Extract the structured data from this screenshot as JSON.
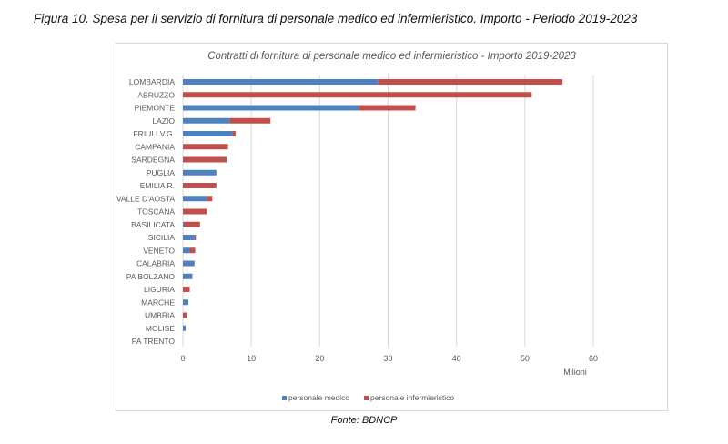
{
  "figure_title": "Figura 10. Spesa per il servizio di fornitura di personale medico ed infermieristico. Importo - Periodo 2019-2023",
  "source": "Fonte: BDNCP",
  "chart_data": {
    "type": "bar",
    "orientation": "horizontal",
    "stacked": true,
    "title": "Contratti di fornitura di personale medico ed infermieristico - Importo 2019-2023",
    "xlabel": "Milioni",
    "ylabel": "",
    "xlim": [
      0,
      60
    ],
    "xticks": [
      "0",
      "10",
      "20",
      "30",
      "40",
      "50",
      "60"
    ],
    "grid": true,
    "legend": "bottom",
    "categories": [
      "LOMBARDIA",
      "ABRUZZO",
      "PIEMONTE",
      "LAZIO",
      "FRIULI V.G.",
      "CAMPANIA",
      "SARDEGNA",
      "PUGLIA",
      "EMILIA R.",
      "VALLE D'AOSTA",
      "TOSCANA",
      "BASILICATA",
      "SICILIA",
      "VENETO",
      "CALABRIA",
      "PA BOLZANO",
      "LIGURIA",
      "MARCHE",
      "UMBRIA",
      "MOLISE",
      "PA TRENTO"
    ],
    "series": [
      {
        "name": "personale medico",
        "color": "#4f81bd",
        "values": [
          28.5,
          0,
          25.7,
          6.9,
          7.2,
          0,
          0,
          4.9,
          0,
          3.5,
          0,
          0.2,
          1.7,
          1.0,
          1.7,
          1.4,
          0,
          0.8,
          0,
          0.4,
          0
        ]
      },
      {
        "name": "personale infermieristico",
        "color": "#c0504d",
        "values": [
          27.0,
          51.0,
          8.3,
          5.9,
          0.5,
          6.6,
          6.4,
          0,
          4.9,
          0.8,
          3.5,
          2.3,
          0.2,
          0.8,
          0,
          0,
          1.0,
          0,
          0.6,
          0,
          0
        ]
      }
    ]
  }
}
